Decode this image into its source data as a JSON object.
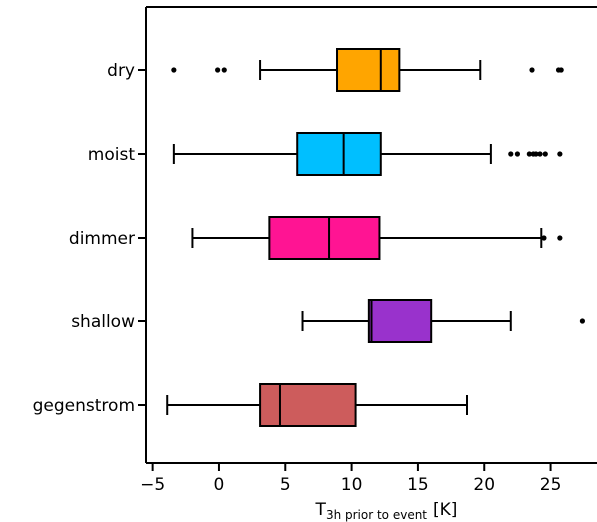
{
  "chart_data": {
    "type": "boxplot",
    "orientation": "horizontal",
    "xlabel": {
      "main": "T",
      "subscript": "3h prior to event",
      "unit": "[K]"
    },
    "xlim": [
      -5.5,
      28.5
    ],
    "xticks": [
      -5,
      0,
      5,
      10,
      15,
      20,
      25
    ],
    "grid": false,
    "categories": [
      "dry",
      "moist",
      "dimmer",
      "shallow",
      "gegenstrom"
    ],
    "series": [
      {
        "category": "dry",
        "color": "#FFA500",
        "whisker_low": 3.1,
        "q1": 8.9,
        "median": 12.2,
        "q3": 13.6,
        "whisker_high": 19.7,
        "outliers": [
          -3.4,
          -0.1,
          0.4,
          23.6,
          25.6,
          25.8
        ]
      },
      {
        "category": "moist",
        "color": "#00BFFF",
        "whisker_low": -3.4,
        "q1": 5.9,
        "median": 9.4,
        "q3": 12.2,
        "whisker_high": 20.5,
        "outliers": [
          22.0,
          22.5,
          23.4,
          23.7,
          23.9,
          24.2,
          24.6,
          25.7
        ]
      },
      {
        "category": "dimmer",
        "color": "#FF1493",
        "whisker_low": -2.0,
        "q1": 3.8,
        "median": 8.3,
        "q3": 12.1,
        "whisker_high": 24.3,
        "outliers": [
          24.5,
          25.7
        ]
      },
      {
        "category": "shallow",
        "color": "#9932CC",
        "whisker_low": 6.3,
        "q1": 11.3,
        "median": 11.5,
        "q3": 16.0,
        "whisker_high": 22.0,
        "outliers": [
          27.4
        ]
      },
      {
        "category": "gegenstrom",
        "color": "#CD5C5C",
        "whisker_low": -3.9,
        "q1": 3.1,
        "median": 4.6,
        "q3": 10.3,
        "whisker_high": 18.7,
        "outliers": []
      }
    ]
  }
}
